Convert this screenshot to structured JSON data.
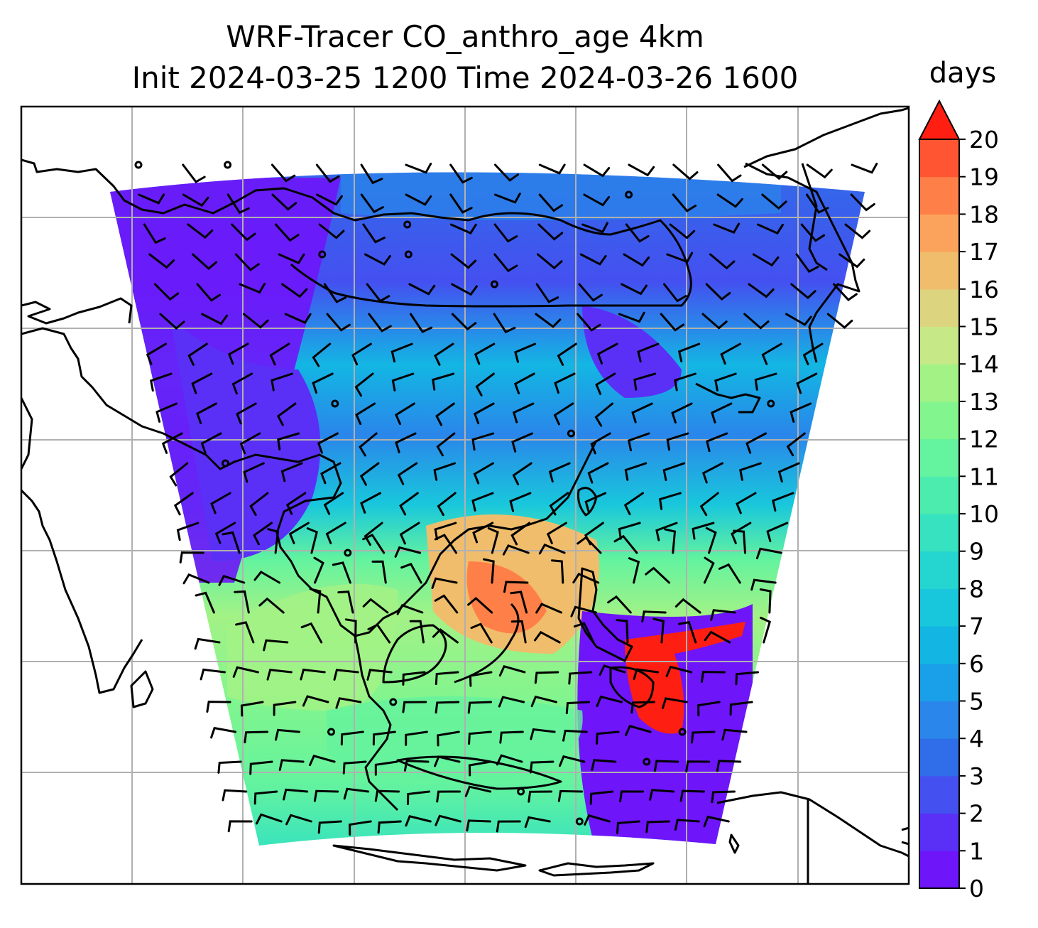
{
  "title_line1": "WRF-Tracer CO_anthro_age 4km",
  "title_line2": "Init 2024-03-25 1200 Time 2024-03-26 1600",
  "colorbar": {
    "units": "days",
    "ticks": [
      "0",
      "1",
      "2",
      "3",
      "4",
      "5",
      "6",
      "7",
      "8",
      "9",
      "10",
      "11",
      "12",
      "13",
      "14",
      "15",
      "16",
      "17",
      "18",
      "19",
      "20"
    ],
    "extend": "max",
    "colors": [
      "#6e15fa",
      "#5a30f7",
      "#4450f0",
      "#306de8",
      "#2a86ea",
      "#1aa0e8",
      "#13b6e3",
      "#19c7dc",
      "#25d6d0",
      "#36e2bf",
      "#4cecae",
      "#64f39e",
      "#82f58e",
      "#a3f286",
      "#c6e886",
      "#dcd47e",
      "#f0bd6c",
      "#fba35c",
      "#ff7f48",
      "#ff5533",
      "#ff1f12"
    ]
  },
  "map": {
    "gridlines": "on",
    "colormap": "rainbow",
    "overlay": "wind barbs",
    "features": [
      "coastlines",
      "country borders"
    ]
  }
}
